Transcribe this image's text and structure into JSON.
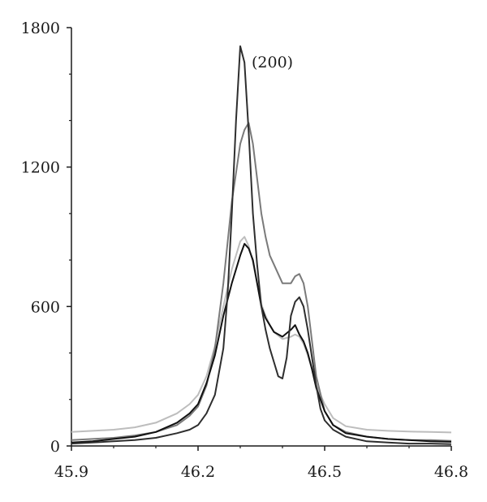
{
  "chart_data": {
    "type": "line",
    "title": "",
    "xlabel": "",
    "ylabel": "",
    "xlim": [
      45.9,
      46.8
    ],
    "ylim": [
      0,
      1800
    ],
    "x_ticks": [
      "45.9",
      "46.2",
      "46.5",
      "46.8"
    ],
    "y_ticks": [
      "0",
      "600",
      "1200",
      "1800"
    ],
    "grid": false,
    "legend": "none",
    "annotation": "(200)",
    "series": [
      {
        "color": "#2e2e2e",
        "x": [
          45.9,
          45.95,
          46.0,
          46.05,
          46.1,
          46.15,
          46.18,
          46.2,
          46.22,
          46.24,
          46.26,
          46.27,
          46.28,
          46.29,
          46.3,
          46.31,
          46.32,
          46.33,
          46.34,
          46.35,
          46.36,
          46.37,
          46.38,
          46.39,
          46.4,
          46.41,
          46.42,
          46.43,
          46.44,
          46.45,
          46.46,
          46.47,
          46.48,
          46.49,
          46.5,
          46.52,
          46.55,
          46.6,
          46.65,
          46.7,
          46.75,
          46.8
        ],
        "y": [
          10,
          15,
          20,
          25,
          35,
          55,
          70,
          90,
          140,
          220,
          420,
          650,
          1000,
          1400,
          1720,
          1650,
          1350,
          1000,
          780,
          600,
          500,
          420,
          360,
          300,
          290,
          380,
          560,
          620,
          640,
          600,
          500,
          380,
          260,
          160,
          110,
          70,
          40,
          20,
          15,
          10,
          10,
          8
        ]
      },
      {
        "color": "#7a7a7a",
        "x": [
          45.9,
          45.95,
          46.0,
          46.05,
          46.1,
          46.15,
          46.18,
          46.2,
          46.22,
          46.24,
          46.26,
          46.28,
          46.3,
          46.31,
          46.32,
          46.33,
          46.34,
          46.35,
          46.36,
          46.37,
          46.38,
          46.4,
          46.42,
          46.43,
          46.44,
          46.45,
          46.46,
          46.47,
          46.48,
          46.5,
          46.52,
          46.55,
          46.6,
          46.65,
          46.7,
          46.75,
          46.8
        ],
        "y": [
          25,
          30,
          35,
          45,
          60,
          90,
          130,
          170,
          260,
          420,
          700,
          1050,
          1300,
          1360,
          1390,
          1300,
          1150,
          1000,
          900,
          820,
          780,
          700,
          700,
          730,
          740,
          700,
          600,
          450,
          300,
          150,
          90,
          60,
          40,
          30,
          25,
          25,
          22
        ]
      },
      {
        "color": "#111111",
        "x": [
          45.9,
          45.95,
          46.0,
          46.05,
          46.1,
          46.15,
          46.18,
          46.2,
          46.22,
          46.24,
          46.26,
          46.28,
          46.3,
          46.31,
          46.32,
          46.33,
          46.34,
          46.35,
          46.36,
          46.37,
          46.38,
          46.4,
          46.42,
          46.43,
          46.44,
          46.45,
          46.46,
          46.47,
          46.48,
          46.5,
          46.52,
          46.55,
          46.6,
          46.65,
          46.7,
          46.75,
          46.8
        ],
        "y": [
          15,
          20,
          30,
          40,
          60,
          100,
          140,
          180,
          270,
          390,
          560,
          700,
          820,
          870,
          850,
          800,
          700,
          600,
          550,
          520,
          490,
          470,
          500,
          520,
          480,
          450,
          400,
          330,
          250,
          150,
          90,
          55,
          40,
          30,
          25,
          20,
          18
        ]
      },
      {
        "color": "#bdbdbd",
        "x": [
          45.9,
          45.95,
          46.0,
          46.05,
          46.1,
          46.15,
          46.18,
          46.2,
          46.22,
          46.24,
          46.26,
          46.28,
          46.3,
          46.31,
          46.32,
          46.33,
          46.34,
          46.35,
          46.36,
          46.37,
          46.38,
          46.4,
          46.42,
          46.43,
          46.44,
          46.45,
          46.46,
          46.47,
          46.48,
          46.5,
          46.52,
          46.55,
          46.6,
          46.65,
          46.7,
          46.75,
          46.8
        ],
        "y": [
          60,
          65,
          70,
          80,
          100,
          140,
          180,
          220,
          300,
          430,
          600,
          760,
          880,
          900,
          860,
          790,
          700,
          610,
          560,
          520,
          490,
          460,
          470,
          480,
          470,
          440,
          390,
          330,
          260,
          180,
          120,
          85,
          70,
          65,
          62,
          60,
          58
        ]
      }
    ]
  }
}
